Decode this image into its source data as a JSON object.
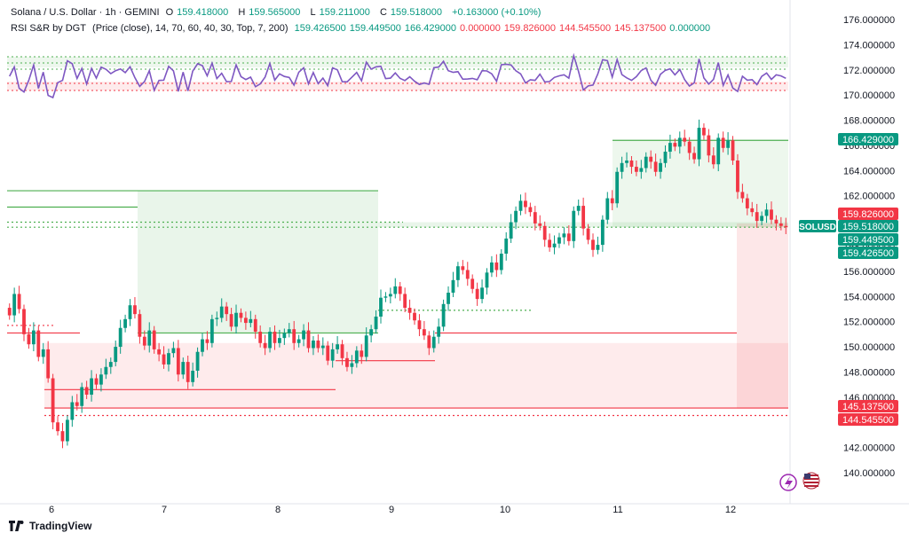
{
  "header": {
    "title": "Solana / U.S. Dollar · 1h · GEMINI",
    "open_label": "O",
    "open": "159.418000",
    "high_label": "H",
    "high": "159.565000",
    "low_label": "L",
    "low": "159.211000",
    "close_label": "C",
    "close": "159.518000",
    "change": "+0.163000 (+0.10%)",
    "indicator_name": "RSI S&R by DGT",
    "indicator_params": "(Price (close), 14, 70, 60, 40, 30, Top, 7, 200)",
    "indicator_values": [
      "159.426500",
      "159.449500",
      "166.429000",
      "0.000000",
      "159.826000",
      "144.545500",
      "145.137500",
      "0.000000"
    ],
    "indicator_value_colors": [
      "#089981",
      "#089981",
      "#089981",
      "#f23645",
      "#f23645",
      "#f23645",
      "#f23645",
      "#089981"
    ]
  },
  "price_badges": [
    {
      "label": "166.429000",
      "value": 166.429,
      "color": "#089981"
    },
    {
      "label": "159.826000",
      "value": 159.826,
      "color": "#f23645"
    },
    {
      "label": "159.518000",
      "value": 159.518,
      "color": "#089981",
      "symbol": "SOLUSD"
    },
    {
      "label": "159.449500",
      "value": 159.4495,
      "color": "#089981"
    },
    {
      "label": "159.426500",
      "value": 159.4265,
      "color": "#089981"
    },
    {
      "label": "145.137500",
      "value": 145.1375,
      "color": "#f23645"
    },
    {
      "label": "144.545500",
      "value": 144.5455,
      "color": "#f23645"
    }
  ],
  "footer": {
    "brand": "TradingView"
  },
  "icons": [
    "flash-icon",
    "us-flag-icon"
  ],
  "colors": {
    "up": "#089981",
    "down": "#f23645",
    "rsi": "#7e57c2",
    "support": "#4caf50",
    "resistance": "#f23645"
  },
  "chart_data": {
    "type": "candlestick",
    "y_axis": {
      "min": 140,
      "max": 176,
      "step": 2,
      "decimals": 6,
      "position": "right"
    },
    "x_ticks": [
      "6",
      "7",
      "8",
      "9",
      "10",
      "11",
      "12"
    ],
    "candles_close": [
      152.5,
      154.2,
      153,
      151,
      150.2,
      151.3,
      149.2,
      149.8,
      147.5,
      144,
      143.3,
      142.5,
      144.2,
      145.6,
      145.3,
      146.8,
      146.2,
      147.5,
      147,
      147.8,
      148.4,
      148.8,
      150,
      151.5,
      152.2,
      153.3,
      152.6,
      150.8,
      150.1,
      151.3,
      149.8,
      149.4,
      148.6,
      149.5,
      149.9,
      147.8,
      148.8,
      147.2,
      148.1,
      149.6,
      150.6,
      150.3,
      152.2,
      152.3,
      153.2,
      152.6,
      151.6,
      152.7,
      152.3,
      151.9,
      152.2,
      151.2,
      150.3,
      149.9,
      151.2,
      150.3,
      150.7,
      151.1,
      151.4,
      150.3,
      150.6,
      151.3,
      149.9,
      150.5,
      149.9,
      150.1,
      148.9,
      149.8,
      150.2,
      149.1,
      148.4,
      148.7,
      149.7,
      149.2,
      150.9,
      151.4,
      152.4,
      153.9,
      154,
      154.2,
      154.8,
      154.2,
      153.1,
      152.7,
      152.1,
      151.4,
      150.9,
      149.9,
      150.8,
      151.6,
      153.4,
      154.3,
      155.3,
      156.4,
      156.1,
      155.4,
      154.6,
      153.8,
      154.7,
      155.9,
      156.7,
      156.1,
      157.4,
      158.6,
      159.9,
      160.8,
      161.6,
      161.1,
      160.7,
      159.8,
      159.6,
      158.5,
      157.9,
      158.2,
      158.7,
      159,
      158.4,
      160.8,
      161.2,
      159.4,
      158.5,
      157.7,
      158.1,
      160.1,
      161.8,
      161.4,
      163.9,
      164.6,
      164.8,
      164.3,
      163.9,
      164.2,
      165.1,
      164.7,
      163.9,
      164.6,
      165.5,
      166.2,
      165.9,
      166.6,
      166.3,
      165.4,
      164.9,
      167.4,
      166.8,
      165.2,
      164.5,
      166.6,
      165.8,
      166.4,
      164.8,
      162.3,
      161.8,
      161,
      160.7,
      160,
      160.4,
      160.9,
      160.1,
      159.8,
      159.6,
      159.5
    ],
    "rsi_line_color": "#7e57c2",
    "levels": [
      {
        "type": "resistance",
        "value": 162.4,
        "color": "#4caf50"
      },
      {
        "type": "resistance",
        "value": 161.1,
        "color": "#4caf50"
      },
      {
        "type": "support",
        "value": 159.9,
        "color": "#4caf50"
      },
      {
        "type": "support",
        "value": 159.5,
        "color": "#4caf50"
      },
      {
        "type": "support",
        "value": 152.4,
        "color": "#4caf50"
      },
      {
        "type": "resistance",
        "value": 151.1,
        "color": "#f23645"
      },
      {
        "type": "resistance",
        "value": 150.3,
        "color": "#f23645"
      },
      {
        "type": "support",
        "value": 145.1375,
        "color": "#f23645"
      },
      {
        "type": "support",
        "value": 144.5455,
        "color": "#f23645"
      }
    ]
  }
}
